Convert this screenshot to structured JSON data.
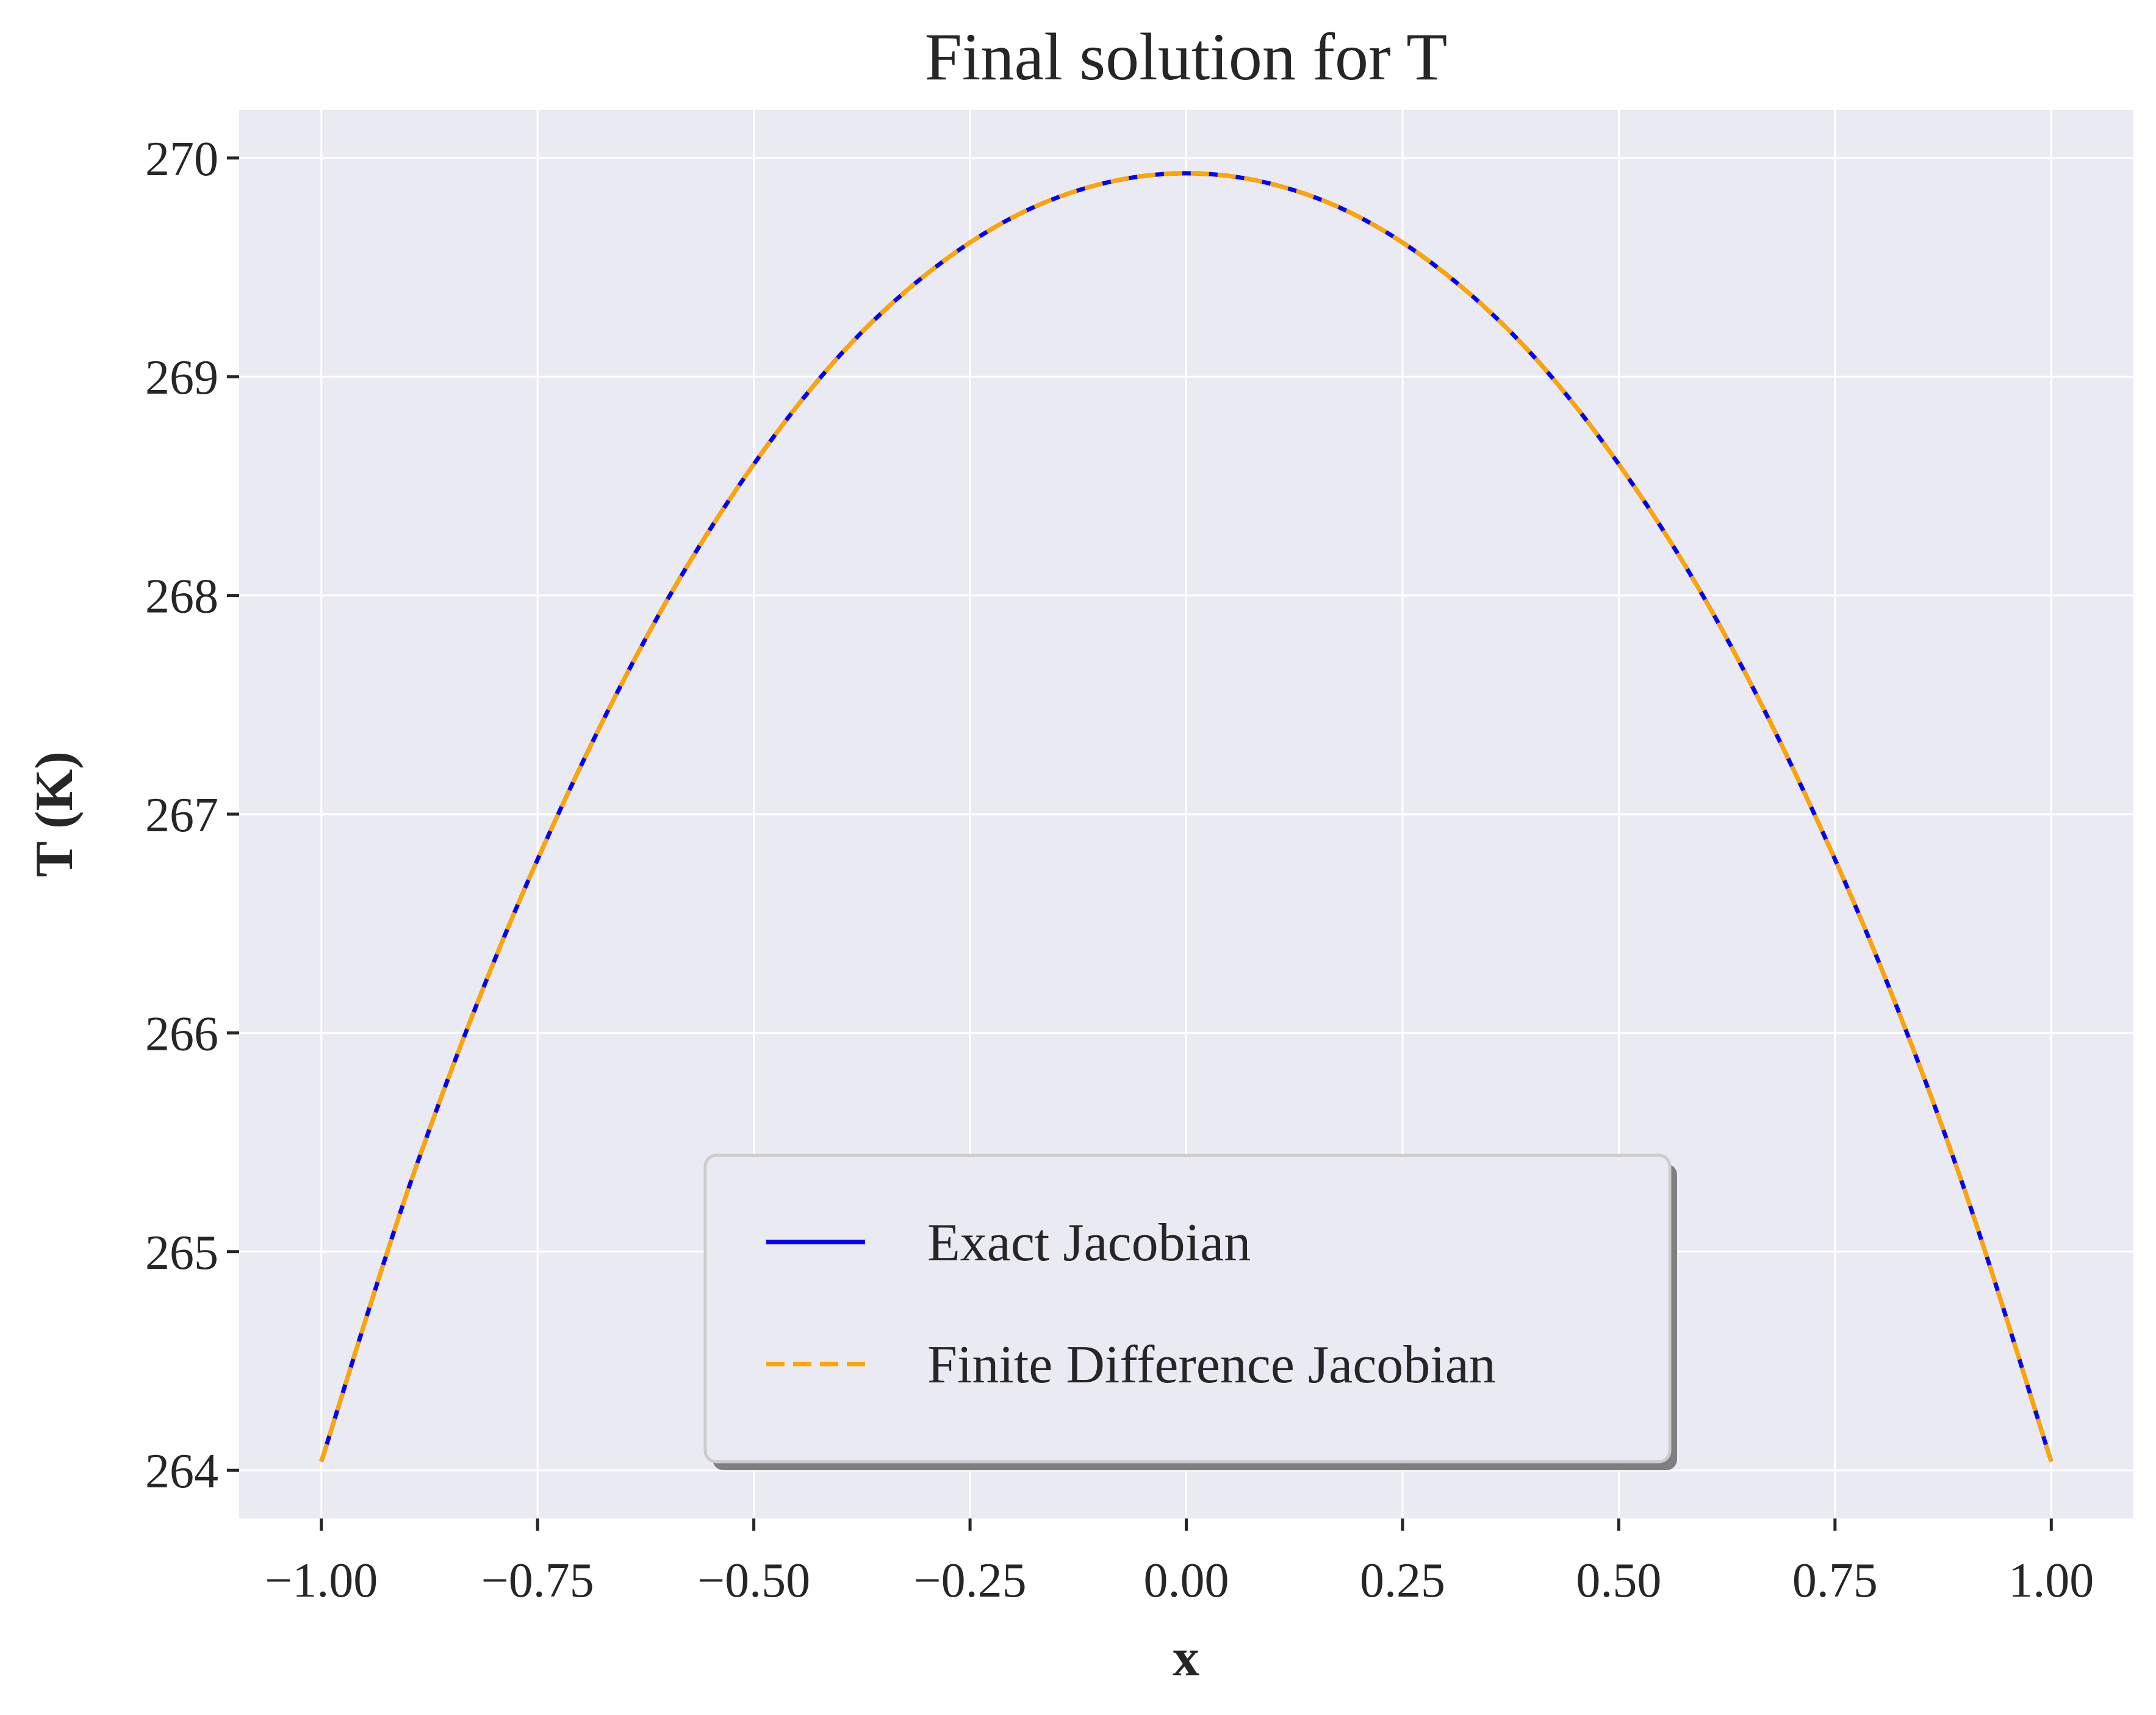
{
  "chart_data": {
    "type": "line",
    "title": "Final solution for T",
    "xlabel": "x",
    "ylabel": "T (K)",
    "xlim": [
      -1.095,
      1.095
    ],
    "ylim": [
      263.78,
      270.22
    ],
    "xticks": [
      -1.0,
      -0.75,
      -0.5,
      -0.25,
      0.0,
      0.25,
      0.5,
      0.75,
      1.0
    ],
    "xtick_labels": [
      "−1.00",
      "−0.75",
      "−0.50",
      "−0.25",
      "0.00",
      "0.25",
      "0.50",
      "0.75",
      "1.00"
    ],
    "yticks": [
      264,
      265,
      266,
      267,
      268,
      269,
      270
    ],
    "ytick_labels": [
      "264",
      "265",
      "266",
      "267",
      "268",
      "269",
      "270"
    ],
    "grid": true,
    "legend_position": "lower-center",
    "x": [
      -1.0,
      -0.9,
      -0.8,
      -0.7,
      -0.6,
      -0.5,
      -0.4,
      -0.3,
      -0.2,
      -0.1,
      0.0,
      0.1,
      0.2,
      0.3,
      0.4,
      0.5,
      0.6,
      0.7,
      0.8,
      0.9,
      1.0
    ],
    "series": [
      {
        "name": "Exact Jacobian",
        "color": "#0000ff",
        "linestyle": "solid",
        "values": [
          264.04,
          265.28,
          266.33,
          267.22,
          267.98,
          268.6,
          269.1,
          269.47,
          269.73,
          269.88,
          269.93,
          269.88,
          269.73,
          269.47,
          269.1,
          268.6,
          267.98,
          267.22,
          266.33,
          265.28,
          264.04
        ]
      },
      {
        "name": "Finite Difference Jacobian",
        "color": "#ffa500",
        "linestyle": "dashed",
        "values": [
          264.04,
          265.28,
          266.33,
          267.22,
          267.98,
          268.6,
          269.1,
          269.47,
          269.73,
          269.88,
          269.93,
          269.88,
          269.73,
          269.47,
          269.1,
          268.6,
          267.98,
          267.22,
          266.33,
          265.28,
          264.04
        ]
      }
    ]
  }
}
